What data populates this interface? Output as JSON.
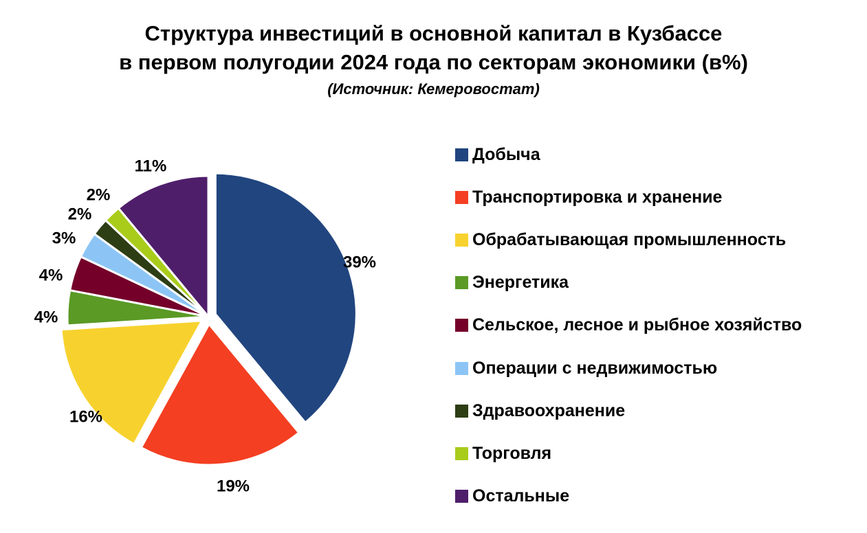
{
  "chart_data": {
    "type": "pie",
    "title_line1": "Структура инвестиций в основной капитал в Кузбассе",
    "title_line2": "в первом полугодии 2024 года по секторам экономики (в%)",
    "subtitle": "(Источник: Кемеровостат)",
    "legend_position": "right",
    "slices": [
      {
        "name": "Добыча",
        "value": 39,
        "label": "39%",
        "color": "#21457f",
        "exploded": true
      },
      {
        "name": "Транспортировка и хранение",
        "value": 19,
        "label": "19%",
        "color": "#f43f22",
        "exploded": true
      },
      {
        "name": "Обрабатывающая промышленность",
        "value": 16,
        "label": "16%",
        "color": "#f7d22e",
        "exploded": true
      },
      {
        "name": "Энергетика",
        "value": 4,
        "label": "4%",
        "color": "#5a9a25",
        "exploded": false
      },
      {
        "name": "Сельское, лесное и рыбное хозяйство",
        "value": 4,
        "label": "4%",
        "color": "#74002a",
        "exploded": false
      },
      {
        "name": "Операции с недвижимостью",
        "value": 3,
        "label": "3%",
        "color": "#8cc5f5",
        "exploded": false
      },
      {
        "name": "Здравоохранение",
        "value": 2,
        "label": "2%",
        "color": "#2d3d14",
        "exploded": false
      },
      {
        "name": "Торговля",
        "value": 2,
        "label": "2%",
        "color": "#a9cc1b",
        "exploded": false
      },
      {
        "name": "Остальные",
        "value": 11,
        "label": "11%",
        "color": "#4f1e6a",
        "exploded": false
      }
    ]
  }
}
